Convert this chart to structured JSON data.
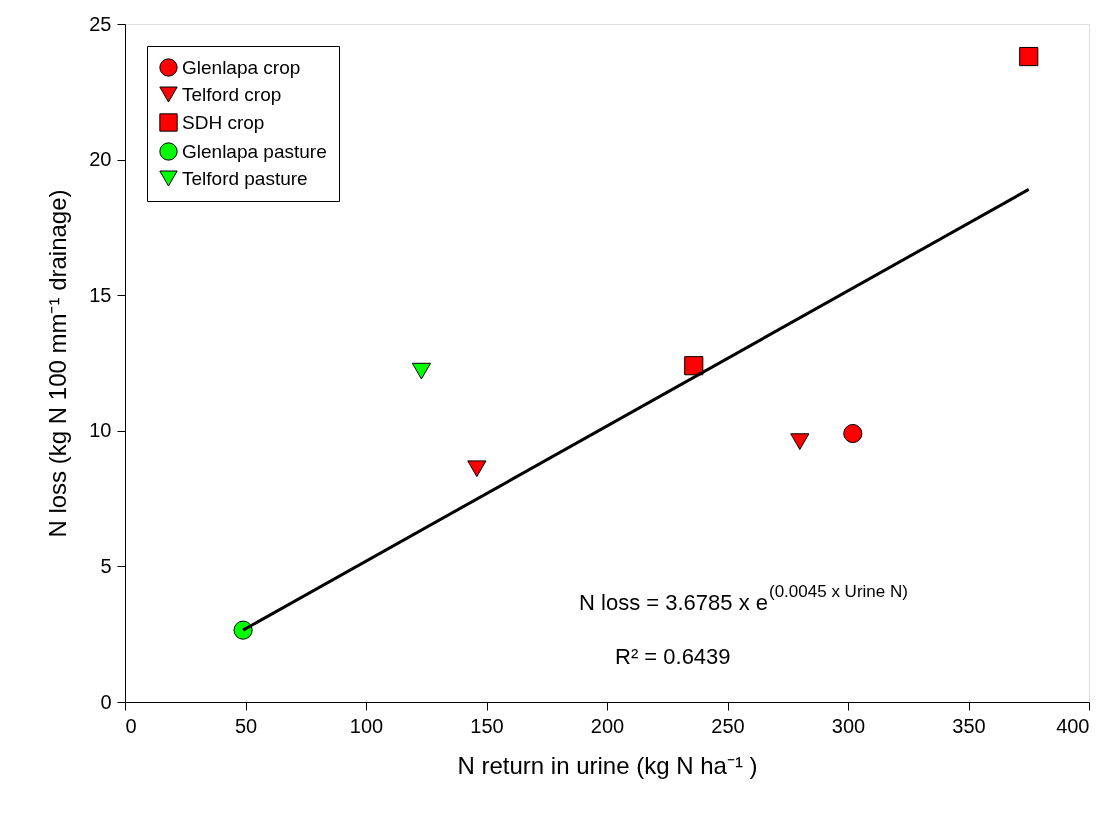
{
  "chart_data": {
    "type": "scatter",
    "xlabel": "N return in urine (kg N ha⁻¹ )",
    "ylabel": "N loss (kg N 100 mm⁻¹ drainage)",
    "xlim": [
      0,
      400
    ],
    "xticks": [
      0,
      50,
      100,
      150,
      200,
      250,
      300,
      350,
      400
    ],
    "ylim": [
      0,
      25
    ],
    "yticks": [
      0,
      5,
      10,
      15,
      20,
      25
    ],
    "grid": false,
    "legend": "top left",
    "series": [
      {
        "name": "Glenlapa crop",
        "color": "#ff0000",
        "marker": "circle",
        "x": [
          302
        ],
        "values": [
          9.9
        ]
      },
      {
        "name": "Telford crop",
        "color": "#ff0000",
        "marker": "triangle",
        "x": [
          146,
          280
        ],
        "values": [
          8.6,
          9.6
        ]
      },
      {
        "name": "SDH crop",
        "color": "#ff0000",
        "marker": "square",
        "x": [
          236,
          375
        ],
        "values": [
          12.4,
          23.8
        ]
      },
      {
        "name": "Glenlapa pasture",
        "color": "#00ff00",
        "marker": "circle",
        "x": [
          49
        ],
        "values": [
          2.65
        ]
      },
      {
        "name": "Telford pasture",
        "color": "#00ff00",
        "marker": "triangle",
        "x": [
          123
        ],
        "values": [
          12.2
        ]
      },
      {
        "type": "line",
        "color": "#000000",
        "marker": "none",
        "x": [
          49,
          375
        ],
        "values": [
          2.65,
          18.9
        ]
      }
    ],
    "annotations": [
      "N loss = 3.6785 x e$^{(0.0045 x Urine N)}$",
      "R² = 0.6439"
    ]
  }
}
